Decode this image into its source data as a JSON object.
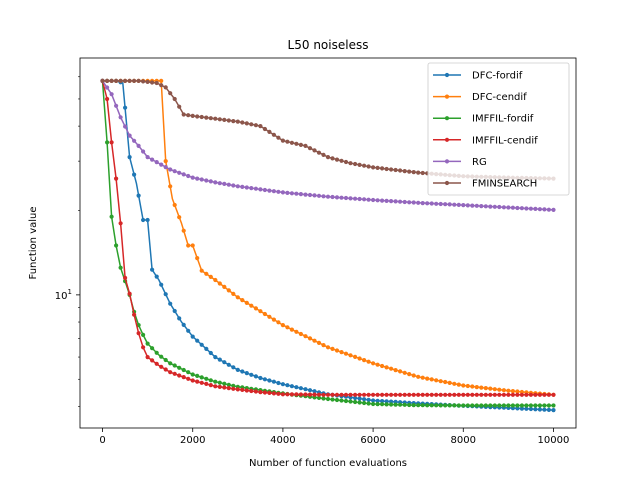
{
  "chart_data": {
    "type": "line",
    "title": "L50  noiseless",
    "xlabel": "Number of function evaluations",
    "ylabel": "Function value",
    "xlim": [
      -500,
      10500
    ],
    "ylim": [
      3.35,
      70
    ],
    "yscale": "log",
    "xticks": [
      0,
      2000,
      4000,
      6000,
      8000,
      10000
    ],
    "xtick_labels": [
      "0",
      "2000",
      "4000",
      "6000",
      "8000",
      "10000"
    ],
    "yticks": [
      10
    ],
    "ytick_labels": [
      "10^1"
    ],
    "ytick_label_base": "10",
    "ytick_label_exp": "1",
    "legend_position": "top-right",
    "series": [
      {
        "name": "DFC-fordif",
        "color": "#1f77b4",
        "x": [
          0,
          150,
          300,
          450,
          600,
          750,
          900,
          1000,
          1100,
          1250,
          1500,
          1750,
          2000,
          2500,
          3000,
          3500,
          4000,
          5000,
          6000,
          7000,
          8000,
          9000,
          10000
        ],
        "y": [
          58,
          58,
          58,
          57,
          31,
          25,
          18.5,
          18.5,
          12.3,
          11.3,
          9.3,
          8.0,
          7.1,
          6.0,
          5.4,
          5.05,
          4.8,
          4.42,
          4.2,
          4.1,
          4.02,
          3.95,
          3.88
        ]
      },
      {
        "name": "DFC-cendif",
        "color": "#ff7f0e",
        "x": [
          0,
          300,
          600,
          900,
          1200,
          1300,
          1400,
          1550,
          1750,
          1900,
          2000,
          2200,
          2500,
          3000,
          4000,
          5000,
          6000,
          7000,
          8000,
          9000,
          10000
        ],
        "y": [
          58,
          58,
          58,
          58,
          58,
          58,
          30,
          22,
          18,
          15,
          15,
          12.2,
          11.3,
          9.8,
          7.8,
          6.5,
          5.7,
          5.1,
          4.75,
          4.55,
          4.4
        ]
      },
      {
        "name": "IMFFIL-fordif",
        "color": "#2ca02c",
        "x": [
          0,
          100,
          200,
          300,
          400,
          500,
          600,
          700,
          800,
          900,
          1000,
          1250,
          1500,
          2000,
          2500,
          3000,
          4000,
          5000,
          6000,
          7000,
          8000,
          9000,
          10000
        ],
        "y": [
          58,
          35,
          19,
          15,
          12.5,
          11.2,
          10,
          8.7,
          7.8,
          7.2,
          6.7,
          6.1,
          5.7,
          5.2,
          4.9,
          4.7,
          4.45,
          4.25,
          4.08,
          4.04,
          4.03,
          4.03,
          4.03
        ]
      },
      {
        "name": "IMFFIL-cendif",
        "color": "#d62728",
        "x": [
          0,
          100,
          200,
          300,
          400,
          500,
          600,
          700,
          800,
          900,
          1000,
          1250,
          1500,
          2000,
          2500,
          3000,
          3500,
          4000,
          5000,
          6000,
          7000,
          8000,
          9000,
          10000
        ],
        "y": [
          58,
          50,
          35,
          26,
          18,
          11.5,
          10.1,
          8.5,
          7.3,
          6.5,
          6.0,
          5.6,
          5.3,
          4.95,
          4.72,
          4.6,
          4.5,
          4.42,
          4.4,
          4.4,
          4.4,
          4.4,
          4.4,
          4.4
        ]
      },
      {
        "name": "RG",
        "color": "#9467bd",
        "x": [
          0,
          200,
          400,
          600,
          800,
          1000,
          1500,
          2000,
          2500,
          3000,
          4000,
          5000,
          6000,
          7000,
          8000,
          9000,
          10000
        ],
        "y": [
          58,
          52,
          43,
          37,
          34,
          31,
          28,
          26.2,
          25.2,
          24.4,
          23.2,
          22.4,
          21.8,
          21.3,
          20.9,
          20.5,
          20.1
        ]
      },
      {
        "name": "FMINSEARCH",
        "color": "#8c564b",
        "x": [
          0,
          400,
          800,
          1200,
          1400,
          1600,
          1800,
          2000,
          2500,
          3000,
          3500,
          4000,
          4500,
          5000,
          5500,
          6000,
          7000,
          8000,
          9000,
          10000
        ],
        "y": [
          58,
          58,
          58,
          57,
          55,
          50,
          44,
          43.5,
          42.5,
          41.5,
          40,
          35.5,
          34,
          31,
          29.5,
          28.5,
          27.3,
          26.5,
          26.2,
          26.0
        ]
      }
    ]
  }
}
